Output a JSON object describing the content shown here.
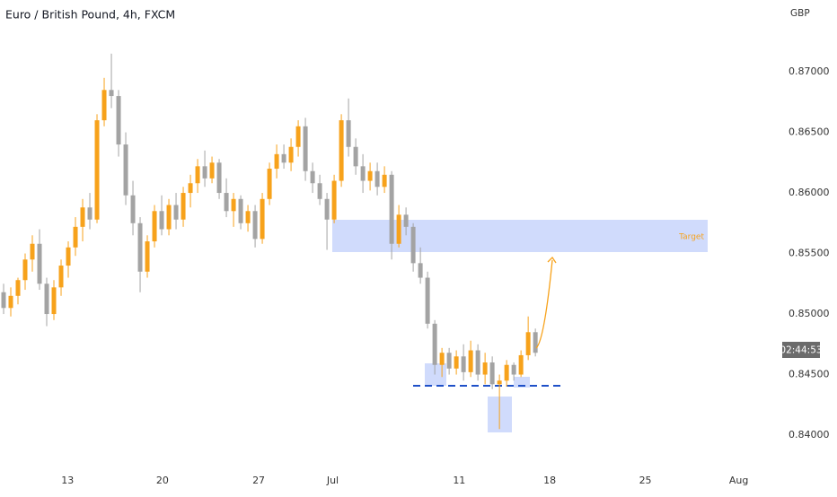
{
  "chart_data": {
    "type": "candlestick",
    "title": "Euro / British Pound, 4h, FXCM",
    "currency": "GBP",
    "countdown": "02:44:53",
    "annotation": "Target",
    "up_color": "#f7a21b",
    "down_color": "#a3a3a3",
    "ylim": [
      0.83741,
      0.87593
    ],
    "yticks": [
      {
        "value": 0.84,
        "label": "0.84000"
      },
      {
        "value": 0.845,
        "label": "0.84500"
      },
      {
        "value": 0.85,
        "label": "0.85000"
      },
      {
        "value": 0.855,
        "label": "0.85500"
      },
      {
        "value": 0.86,
        "label": "0.86000"
      },
      {
        "value": 0.865,
        "label": "0.86500"
      },
      {
        "value": 0.87,
        "label": "0.87000"
      }
    ],
    "xlim": [
      -0.5,
      107.6
    ],
    "xticks": [
      {
        "value": 8.9,
        "label": "13"
      },
      {
        "value": 22.1,
        "label": "20"
      },
      {
        "value": 35.5,
        "label": "27"
      },
      {
        "value": 45.8,
        "label": "Jul"
      },
      {
        "value": 63.4,
        "label": "11"
      },
      {
        "value": 76,
        "label": "18"
      },
      {
        "value": 89.3,
        "label": "25"
      },
      {
        "value": 102.3,
        "label": "Aug"
      }
    ],
    "open": [
      0.8518,
      0.8505,
      0.8515,
      0.8528,
      0.8545,
      0.8558,
      0.8525,
      0.85,
      0.8522,
      0.854,
      0.8555,
      0.8572,
      0.8588,
      0.8578,
      0.866,
      0.8685,
      0.868,
      0.864,
      0.8598,
      0.8575,
      0.8535,
      0.856,
      0.8585,
      0.857,
      0.859,
      0.8578,
      0.86,
      0.8608,
      0.8622,
      0.8612,
      0.8625,
      0.86,
      0.8585,
      0.8595,
      0.8575,
      0.8585,
      0.8562,
      0.8595,
      0.862,
      0.8632,
      0.8625,
      0.8638,
      0.8655,
      0.8618,
      0.8608,
      0.8595,
      0.8578,
      0.861,
      0.866,
      0.8638,
      0.8622,
      0.861,
      0.8618,
      0.8605,
      0.8615,
      0.8558,
      0.8582,
      0.8572,
      0.8542,
      0.853,
      0.8492,
      0.8458,
      0.8468,
      0.8455,
      0.8465,
      0.8452,
      0.847,
      0.845,
      0.846,
      0.8442,
      0.8445,
      0.8458,
      0.845,
      0.8466,
      0.8485
    ],
    "high": [
      0.8525,
      0.8522,
      0.853,
      0.855,
      0.8565,
      0.857,
      0.853,
      0.8528,
      0.8545,
      0.856,
      0.858,
      0.8595,
      0.86,
      0.8665,
      0.8695,
      0.8715,
      0.8685,
      0.865,
      0.861,
      0.858,
      0.8565,
      0.859,
      0.8598,
      0.8595,
      0.86,
      0.8605,
      0.8615,
      0.8628,
      0.8635,
      0.863,
      0.8628,
      0.8612,
      0.86,
      0.8598,
      0.859,
      0.859,
      0.86,
      0.8625,
      0.864,
      0.864,
      0.8645,
      0.866,
      0.8662,
      0.8625,
      0.8615,
      0.86,
      0.8615,
      0.8665,
      0.8678,
      0.8645,
      0.8632,
      0.8625,
      0.8625,
      0.8622,
      0.8618,
      0.859,
      0.8588,
      0.8575,
      0.8555,
      0.8535,
      0.8495,
      0.8472,
      0.8472,
      0.847,
      0.8475,
      0.8478,
      0.8475,
      0.8468,
      0.8465,
      0.845,
      0.8462,
      0.846,
      0.847,
      0.8498,
      0.8488
    ],
    "low": [
      0.85,
      0.8498,
      0.8508,
      0.852,
      0.8535,
      0.852,
      0.849,
      0.8495,
      0.8515,
      0.853,
      0.8548,
      0.856,
      0.857,
      0.8575,
      0.8655,
      0.867,
      0.863,
      0.859,
      0.8565,
      0.8518,
      0.853,
      0.8555,
      0.8565,
      0.8565,
      0.857,
      0.8572,
      0.8588,
      0.86,
      0.8605,
      0.8608,
      0.8595,
      0.858,
      0.8572,
      0.857,
      0.8568,
      0.8555,
      0.8558,
      0.859,
      0.8612,
      0.862,
      0.8618,
      0.863,
      0.861,
      0.86,
      0.859,
      0.8553,
      0.8575,
      0.8605,
      0.863,
      0.8615,
      0.86,
      0.8602,
      0.8598,
      0.86,
      0.8545,
      0.8555,
      0.8565,
      0.8535,
      0.8525,
      0.8488,
      0.845,
      0.8448,
      0.845,
      0.845,
      0.8445,
      0.8448,
      0.8445,
      0.8442,
      0.8438,
      0.8405,
      0.844,
      0.8445,
      0.8448,
      0.8462,
      0.8465
    ],
    "close": [
      0.8505,
      0.8515,
      0.8528,
      0.8545,
      0.8558,
      0.8525,
      0.85,
      0.8522,
      0.854,
      0.8555,
      0.8572,
      0.8588,
      0.8578,
      0.866,
      0.8685,
      0.868,
      0.864,
      0.8598,
      0.8575,
      0.8535,
      0.856,
      0.8585,
      0.857,
      0.859,
      0.8578,
      0.86,
      0.8608,
      0.8622,
      0.8612,
      0.8625,
      0.86,
      0.8585,
      0.8595,
      0.8575,
      0.8585,
      0.8562,
      0.8595,
      0.862,
      0.8632,
      0.8625,
      0.8638,
      0.8655,
      0.8618,
      0.8608,
      0.8595,
      0.8578,
      0.861,
      0.866,
      0.8638,
      0.8622,
      0.861,
      0.8618,
      0.8605,
      0.8615,
      0.8558,
      0.8582,
      0.8572,
      0.8542,
      0.853,
      0.8492,
      0.8458,
      0.8468,
      0.8455,
      0.8465,
      0.8452,
      0.847,
      0.845,
      0.846,
      0.8442,
      0.8445,
      0.8458,
      0.845,
      0.8466,
      0.8485,
      0.8468
    ]
  }
}
